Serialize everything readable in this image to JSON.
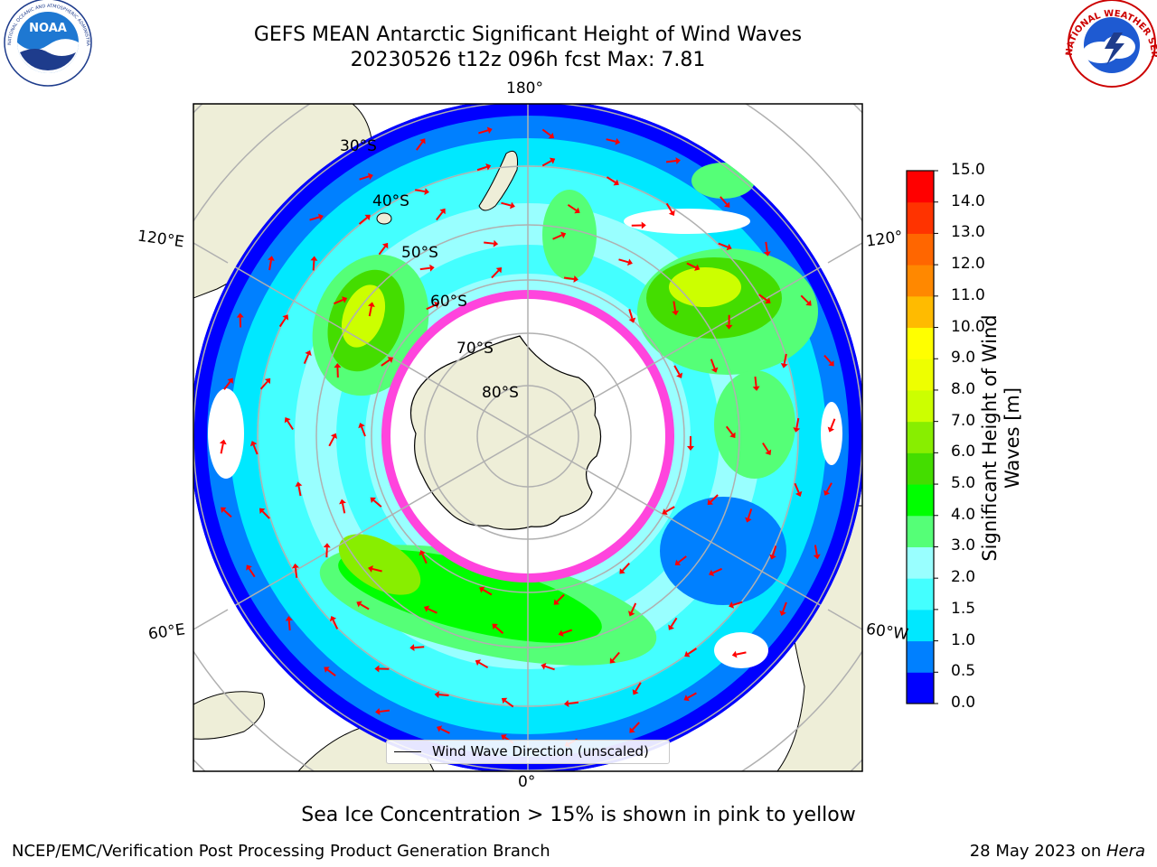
{
  "header": {
    "title_line1": "GEFS MEAN Antarctic Significant Height of Wind Waves",
    "title_line2": "20230526 t12z 096h fcst   Max: 7.81"
  },
  "logos": {
    "left": "NOAA",
    "left_ring_text": "NATIONAL OCEANIC AND ATMOSPHERIC ADMINISTRATION · U.S. DEPARTMENT OF COMMERCE",
    "right_ring_text": "NATIONAL WEATHER SERVICE"
  },
  "map": {
    "longitude_labels": {
      "top": "180°",
      "bottom": "0°",
      "left_upper": "120°E",
      "left_lower": "60°E",
      "right_upper": "120°",
      "right_lower": "60°W"
    },
    "latitude_labels": [
      "30°S",
      "40°S",
      "50°S",
      "60°S",
      "70°S",
      "80°S"
    ],
    "colors": {
      "land": "#eeeed8",
      "ice_edge": "#ff44dd",
      "vectors": "#ff0000"
    }
  },
  "colorbar": {
    "title_line1": "Significant Height of Wind",
    "title_line2": "Waves [m]",
    "ticks": [
      "0.0",
      "0.5",
      "1.0",
      "1.5",
      "2.0",
      "3.0",
      "4.0",
      "5.0",
      "6.0",
      "7.0",
      "8.0",
      "9.0",
      "10.0",
      "11.0",
      "12.0",
      "13.0",
      "14.0",
      "15.0"
    ],
    "colors": [
      "#0000ff",
      "#0080ff",
      "#00e8ff",
      "#44ffff",
      "#99ffff",
      "#55ff77",
      "#00ff00",
      "#44dd00",
      "#88ee00",
      "#ccff00",
      "#eeff00",
      "#ffff00",
      "#ffbb00",
      "#ff8800",
      "#ff6600",
      "#ff3300",
      "#ff0000"
    ]
  },
  "legend": {
    "label": "Wind Wave Direction (unscaled)"
  },
  "notes": {
    "sea_ice": "Sea Ice Concentration > 15% is shown in pink to yellow"
  },
  "footer": {
    "left": "NCEP/EMC/Verification Post Processing Product Generation Branch",
    "right_prefix": "28 May 2023 on ",
    "right_host": "Hera"
  }
}
